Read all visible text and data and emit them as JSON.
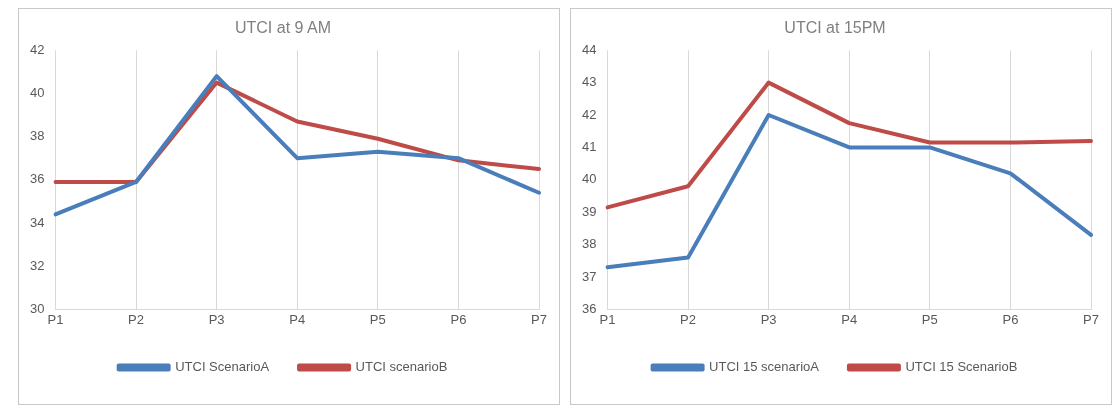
{
  "chart_data": [
    {
      "type": "line",
      "title": "UTCI at 9 AM",
      "categories": [
        "P1",
        "P2",
        "P3",
        "P4",
        "P5",
        "P6",
        "P7"
      ],
      "series": [
        {
          "name": "UTCI ScenarioA",
          "color": "#4a7ebb",
          "values": [
            34.4,
            35.9,
            40.8,
            37.0,
            37.3,
            37.0,
            35.4
          ]
        },
        {
          "name": "UTCI scenarioB",
          "color": "#be4b48",
          "values": [
            35.9,
            35.9,
            40.5,
            38.7,
            37.9,
            36.9,
            36.5
          ]
        }
      ],
      "ylim": [
        30,
        42
      ],
      "yticks": [
        30,
        32,
        34,
        36,
        38,
        40,
        42
      ],
      "grid": "x",
      "legend": "bottom",
      "marker": "none",
      "line_style": "solid"
    },
    {
      "type": "line",
      "title": "UTCI at 15PM",
      "categories": [
        "P1",
        "P2",
        "P3",
        "P4",
        "P5",
        "P6",
        "P7"
      ],
      "series": [
        {
          "name": "UTCI 15 scenarioA",
          "color": "#4a7ebb",
          "values": [
            37.3,
            37.6,
            42.0,
            41.0,
            41.0,
            40.2,
            38.3
          ]
        },
        {
          "name": "UTCI 15 ScenarioB",
          "color": "#be4b48",
          "values": [
            39.15,
            39.8,
            43.0,
            41.75,
            41.15,
            41.15,
            41.2
          ]
        }
      ],
      "ylim": [
        36,
        44
      ],
      "yticks": [
        36,
        37,
        38,
        39,
        40,
        41,
        42,
        43,
        44
      ],
      "grid": "x",
      "legend": "bottom",
      "marker": "none",
      "line_style": "solid"
    }
  ]
}
